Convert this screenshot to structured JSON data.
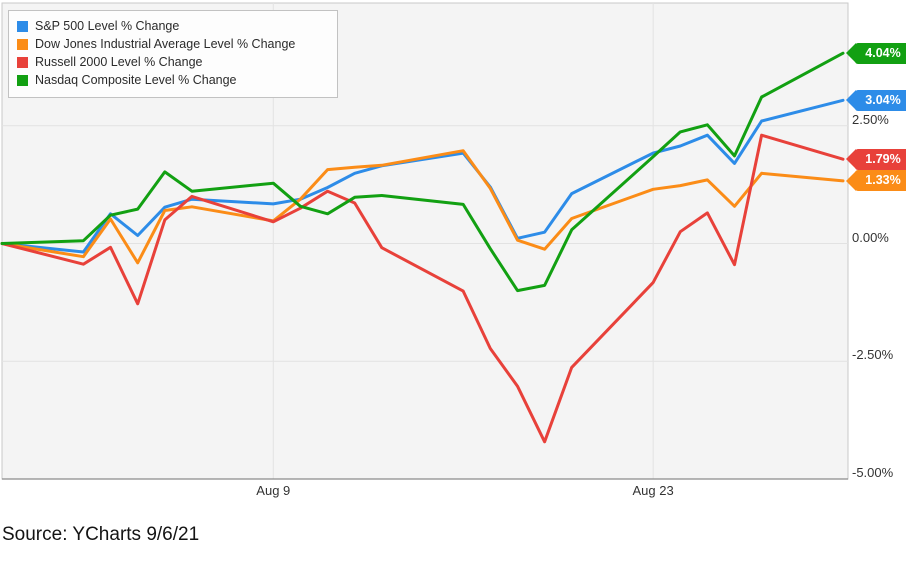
{
  "legend": {
    "items": [
      {
        "label": "S&P 500 Level % Change",
        "color": "#2d8ce8"
      },
      {
        "label": "Dow Jones Industrial Average Level % Change",
        "color": "#fb8c17"
      },
      {
        "label": "Russell 2000 Level % Change",
        "color": "#e8413a"
      },
      {
        "label": "Nasdaq Composite Level % Change",
        "color": "#12a012"
      }
    ]
  },
  "axes": {
    "y_ticks": [
      {
        "label": "2.50%",
        "value": 2.5
      },
      {
        "label": "0.00%",
        "value": 0.0
      },
      {
        "label": "-2.50%",
        "value": -2.5
      },
      {
        "label": "-5.00%",
        "value": -5.0
      }
    ],
    "x_ticks": [
      {
        "label": "Aug 9",
        "date": "2021-08-09"
      },
      {
        "label": "Aug 23",
        "date": "2021-08-23"
      }
    ]
  },
  "end_labels": [
    {
      "text": "4.04%",
      "value": 4.04,
      "color": "#12a012",
      "series": "Nasdaq Composite"
    },
    {
      "text": "3.04%",
      "value": 3.04,
      "color": "#2d8ce8",
      "series": "S&P 500"
    },
    {
      "text": "1.79%",
      "value": 1.79,
      "color": "#e8413a",
      "series": "Russell 2000"
    },
    {
      "text": "1.33%",
      "value": 1.33,
      "color": "#fb8c17",
      "series": "Dow Jones Industrial Average"
    }
  ],
  "source_note": "Source: YCharts 9/6/21",
  "chart_data": {
    "type": "line",
    "title": "",
    "xlabel": "",
    "ylabel": "Level % Change",
    "ylim": [
      -5.0,
      5.1
    ],
    "grid": true,
    "legend_position": "top-left",
    "baseline_date": "2021-07-30",
    "x_dates": [
      "2021-07-30",
      "2021-08-02",
      "2021-08-03",
      "2021-08-04",
      "2021-08-05",
      "2021-08-06",
      "2021-08-09",
      "2021-08-10",
      "2021-08-11",
      "2021-08-12",
      "2021-08-13",
      "2021-08-16",
      "2021-08-17",
      "2021-08-18",
      "2021-08-19",
      "2021-08-20",
      "2021-08-23",
      "2021-08-24",
      "2021-08-25",
      "2021-08-26",
      "2021-08-27",
      "2021-08-30"
    ],
    "series": [
      {
        "name": "S&P 500 Level % Change",
        "color": "#2d8ce8",
        "values": [
          0,
          -0.18,
          0.63,
          0.17,
          0.77,
          0.94,
          0.84,
          0.94,
          1.19,
          1.49,
          1.65,
          1.92,
          1.2,
          0.11,
          0.24,
          1.06,
          1.92,
          2.07,
          2.3,
          1.7,
          2.6,
          3.04
        ]
      },
      {
        "name": "Dow Jones Industrial Average Level % Change",
        "color": "#fb8c17",
        "values": [
          0,
          -0.28,
          0.52,
          -0.41,
          0.7,
          0.78,
          0.48,
          0.94,
          1.57,
          1.62,
          1.66,
          1.97,
          1.17,
          0.07,
          -0.12,
          0.53,
          1.15,
          1.23,
          1.35,
          0.79,
          1.49,
          1.33
        ]
      },
      {
        "name": "Russell 2000 Level % Change",
        "color": "#e8413a",
        "values": [
          0,
          -0.44,
          -0.08,
          -1.28,
          0.5,
          1.0,
          0.46,
          0.75,
          1.11,
          0.86,
          -0.09,
          -1.01,
          -2.23,
          -3.03,
          -4.21,
          -2.63,
          -0.83,
          0.25,
          0.65,
          -0.45,
          2.3,
          1.79
        ]
      },
      {
        "name": "Nasdaq Composite Level % Change",
        "color": "#12a012",
        "values": [
          0,
          0.06,
          0.6,
          0.73,
          1.52,
          1.11,
          1.28,
          0.79,
          0.63,
          0.98,
          1.02,
          0.83,
          -0.11,
          -1.0,
          -0.89,
          0.29,
          1.84,
          2.37,
          2.52,
          1.86,
          3.11,
          4.04
        ]
      }
    ]
  }
}
